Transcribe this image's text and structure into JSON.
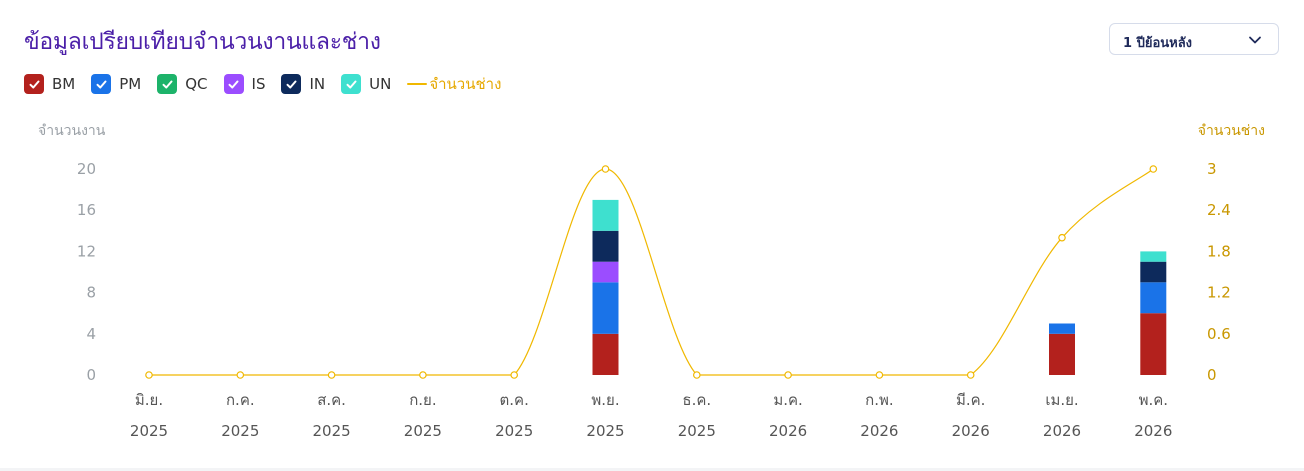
{
  "header": {
    "title": "ข้อมูลเปรียบเทียบจำนวนงานและช่าง",
    "range_select": {
      "selected": "1 ปีย้อนหลัง",
      "icon": "chevron-down-icon"
    }
  },
  "legend": {
    "items": [
      {
        "label": "BM",
        "color": "#b3211d",
        "checked": true
      },
      {
        "label": "PM",
        "color": "#1a73e8",
        "checked": true
      },
      {
        "label": "QC",
        "color": "#1db36a",
        "checked": true
      },
      {
        "label": "IS",
        "color": "#9b4dff",
        "checked": true
      },
      {
        "label": "IN",
        "color": "#0d2a5c",
        "checked": true
      },
      {
        "label": "UN",
        "color": "#3ee0cf",
        "checked": true
      }
    ],
    "line_label": "จำนวนช่าง",
    "line_color": "#f0b800"
  },
  "chart_data": {
    "type": "bar",
    "stacked": true,
    "categories": [
      [
        "มิ.ย.",
        "2025"
      ],
      [
        "ก.ค.",
        "2025"
      ],
      [
        "ส.ค.",
        "2025"
      ],
      [
        "ก.ย.",
        "2025"
      ],
      [
        "ต.ค.",
        "2025"
      ],
      [
        "พ.ย.",
        "2025"
      ],
      [
        "ธ.ค.",
        "2025"
      ],
      [
        "ม.ค.",
        "2026"
      ],
      [
        "ก.พ.",
        "2026"
      ],
      [
        "มี.ค.",
        "2026"
      ],
      [
        "เม.ย.",
        "2026"
      ],
      [
        "พ.ค.",
        "2026"
      ]
    ],
    "series": [
      {
        "name": "BM",
        "values": [
          0,
          0,
          0,
          0,
          0,
          4,
          0,
          0,
          0,
          0,
          4,
          6
        ]
      },
      {
        "name": "PM",
        "values": [
          0,
          0,
          0,
          0,
          0,
          5,
          0,
          0,
          0,
          0,
          1,
          3
        ]
      },
      {
        "name": "QC",
        "values": [
          0,
          0,
          0,
          0,
          0,
          0,
          0,
          0,
          0,
          0,
          0,
          0
        ]
      },
      {
        "name": "IS",
        "values": [
          0,
          0,
          0,
          0,
          0,
          2,
          0,
          0,
          0,
          0,
          0,
          0
        ]
      },
      {
        "name": "IN",
        "values": [
          0,
          0,
          0,
          0,
          0,
          3,
          0,
          0,
          0,
          0,
          0,
          2
        ]
      },
      {
        "name": "UN",
        "values": [
          0,
          0,
          0,
          0,
          0,
          3,
          0,
          0,
          0,
          0,
          0,
          1
        ]
      }
    ],
    "line_series": {
      "name": "จำนวนช่าง",
      "values": [
        0,
        0,
        0,
        0,
        0,
        3,
        0,
        0,
        0,
        0,
        2,
        3
      ]
    },
    "ylabel": "จำนวนงาน",
    "y2label": "จำนวนช่าง",
    "ylim": [
      0,
      20
    ],
    "y_ticks": [
      "0",
      "4",
      "8",
      "12",
      "16",
      "20"
    ],
    "y2lim": [
      0,
      3
    ],
    "y2_ticks": [
      "0",
      "0.6",
      "1.2",
      "1.8",
      "2.4",
      "3"
    ],
    "grid": false,
    "legend_position": "top-left"
  }
}
